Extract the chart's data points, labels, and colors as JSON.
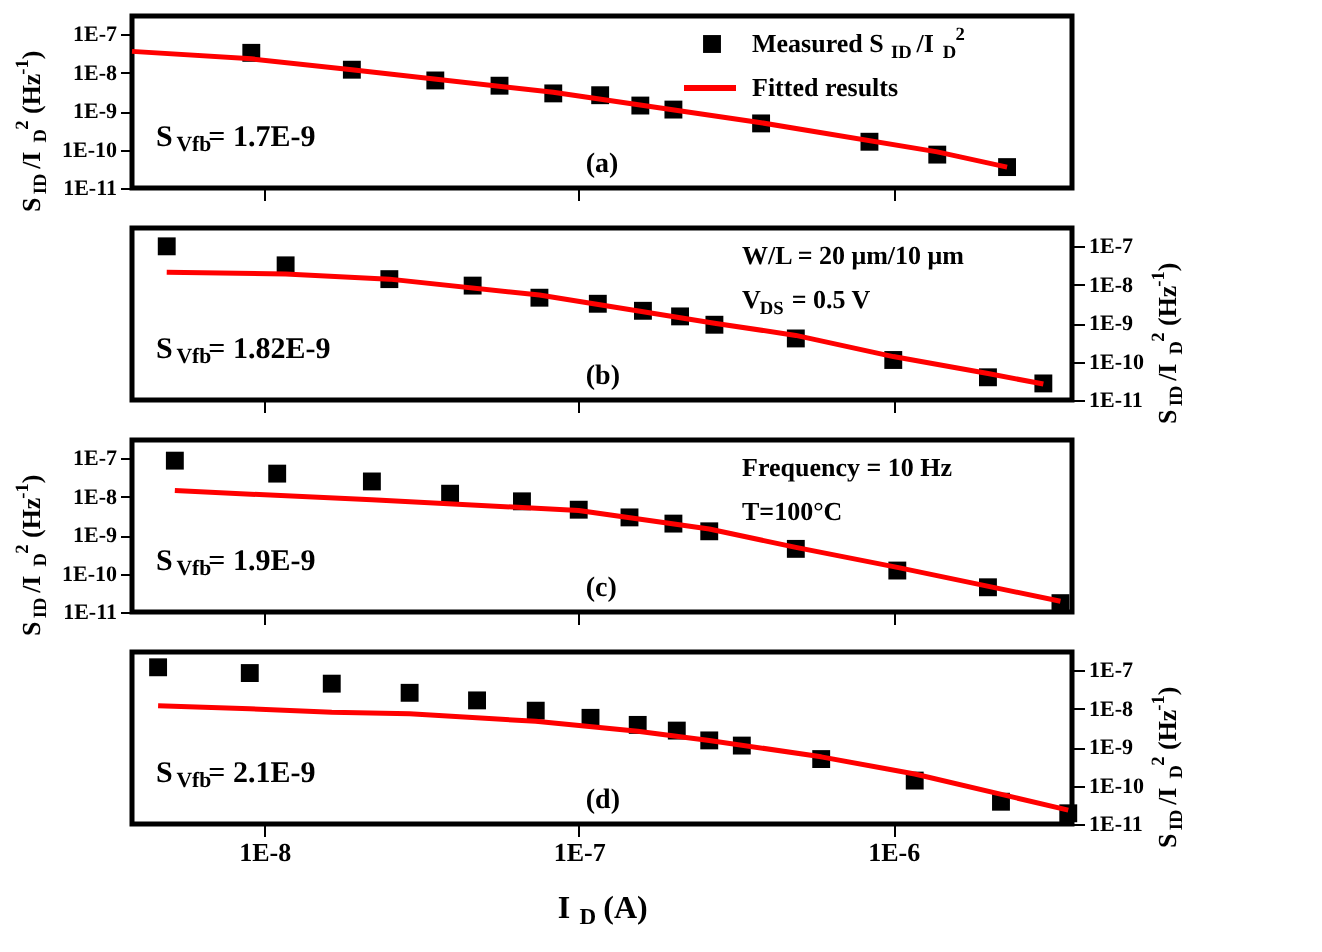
{
  "chart_data": [
    {
      "type": "scatter",
      "log": "xy",
      "xlim": [
        3.8e-09,
        3.7e-06
      ],
      "xticks": [
        {
          "value": 1e-08,
          "label": null
        },
        {
          "value": 1e-07,
          "label": null
        },
        {
          "value": 1e-06,
          "label": null
        }
      ],
      "ylim": [
        1e-11,
        3e-07
      ],
      "yticks": [
        {
          "value": 1e-11,
          "label": "1E-11"
        },
        {
          "value": 1e-10,
          "label": "1E-10"
        },
        {
          "value": 1e-09,
          "label": "1E-9"
        },
        {
          "value": 1e-08,
          "label": "1E-8"
        },
        {
          "value": 1e-07,
          "label": "1E-7"
        }
      ],
      "ylabel": "S$_{ID}$/I$_{D}$$^{2}$ (Hz$^{-1}$)",
      "tick_labels": "y",
      "legend": "top right",
      "grid": false,
      "annotations": [
        "S$_{Vfb}$= 1.7E-9",
        "(a)"
      ],
      "series": [
        {
          "name": "Measured S$_{ID}$/I$_{D}$$^{2}$",
          "type": "scatter",
          "marker": "square",
          "color": "#000000",
          "x": [
            9.1e-09,
            1.9e-08,
            3.5e-08,
            5.6e-08,
            8.3e-08,
            1.17e-07,
            1.57e-07,
            2e-07,
            3.8e-07,
            8.4e-07,
            1.38e-06,
            2.3e-06
          ],
          "values": [
            3.3e-08,
            1.2e-08,
            6.3e-09,
            4.6e-09,
            2.9e-09,
            2.6e-09,
            1.4e-09,
            1.1e-09,
            4.8e-10,
            1.6e-10,
            7.4e-11,
            3.5e-11
          ]
        },
        {
          "name": "Fitted results",
          "type": "line",
          "color": "#ff0000",
          "x": [
            3.8e-09,
            9.1e-09,
            1.9e-08,
            8.3e-08,
            3.8e-07,
            1.38e-06,
            2.3e-06
          ],
          "values": [
            3.6e-08,
            2.3e-08,
            1.2e-08,
            3.1e-09,
            5e-10,
            8.7e-11,
            3.5e-11
          ]
        }
      ]
    },
    {
      "type": "scatter",
      "log": "xy",
      "xlim": [
        3.8e-09,
        3.7e-06
      ],
      "xticks": [
        {
          "value": 1e-08,
          "label": null
        },
        {
          "value": 1e-07,
          "label": null
        },
        {
          "value": 1e-06,
          "label": null
        }
      ],
      "ylim": [
        1e-11,
        3e-07
      ],
      "yticks": [
        {
          "value": 1e-11,
          "label": "1E-11"
        },
        {
          "value": 1e-10,
          "label": "1E-10"
        },
        {
          "value": 1e-09,
          "label": "1E-9"
        },
        {
          "value": 1e-08,
          "label": "1E-8"
        },
        {
          "value": 1e-07,
          "label": "1E-7"
        }
      ],
      "ylabel": "S$_{ID}$/I$_{D}$$^{2}$ (Hz$^{-1}$)",
      "tick_labels": "y",
      "grid": false,
      "annotations": [
        "S$_{Vfb}$= 1.82E-9",
        "(b)",
        "W/L = 20 μm/10 μm",
        "V$_{DS}$ = 0.5 V"
      ],
      "series": [
        {
          "type": "scatter",
          "marker": "square",
          "color": "#000000",
          "x": [
            4.9e-09,
            1.17e-08,
            2.5e-08,
            4.6e-08,
            7.5e-08,
            1.15e-07,
            1.6e-07,
            2.1e-07,
            2.7e-07,
            4.9e-07,
            1e-06,
            2e-06,
            3e-06
          ],
          "values": [
            1e-07,
            3.2e-08,
            1.4e-08,
            9.5e-09,
            4.6e-09,
            3.2e-09,
            2.1e-09,
            1.5e-09,
            9.1e-10,
            4e-10,
            1.1e-10,
            3.9e-11,
            2.7e-11
          ]
        },
        {
          "type": "line",
          "color": "#ff0000",
          "x": [
            4.9e-09,
            1.17e-08,
            2.5e-08,
            7.5e-08,
            2.7e-07,
            4.9e-07,
            1e-06,
            2e-06,
            3e-06
          ],
          "values": [
            2.1e-08,
            1.9e-08,
            1.4e-08,
            5.4e-09,
            1e-09,
            4.8e-10,
            1.35e-10,
            4.9e-11,
            2.6e-11
          ]
        }
      ]
    },
    {
      "type": "scatter",
      "log": "xy",
      "xlim": [
        3.8e-09,
        3.7e-06
      ],
      "xticks": [
        {
          "value": 1e-08,
          "label": null
        },
        {
          "value": 1e-07,
          "label": null
        },
        {
          "value": 1e-06,
          "label": null
        }
      ],
      "ylim": [
        1e-11,
        3e-07
      ],
      "yticks": [
        {
          "value": 1e-11,
          "label": "1E-11"
        },
        {
          "value": 1e-10,
          "label": "1E-10"
        },
        {
          "value": 1e-09,
          "label": "1E-9"
        },
        {
          "value": 1e-08,
          "label": "1E-8"
        },
        {
          "value": 1e-07,
          "label": "1E-7"
        }
      ],
      "ylabel": "S$_{ID}$/I$_{D}$$^{2}$ (Hz$^{-1}$)",
      "tick_labels": "y",
      "grid": false,
      "annotations": [
        "S$_{Vfb}$= 1.9E-9",
        "(c)",
        "Frequency = 10 Hz",
        "T=100°C"
      ],
      "series": [
        {
          "type": "scatter",
          "marker": "square",
          "color": "#000000",
          "x": [
            5.2e-09,
            1.1e-08,
            2.2e-08,
            3.9e-08,
            6.6e-08,
            1e-07,
            1.45e-07,
            2e-07,
            2.6e-07,
            4.9e-07,
            1.03e-06,
            2e-06,
            3.4e-06
          ],
          "values": [
            8.7e-08,
            4e-08,
            2.5e-08,
            1.2e-08,
            7.6e-09,
            4.6e-09,
            2.9e-09,
            2e-09,
            1.26e-09,
            4.4e-10,
            1.2e-10,
            4.4e-11,
            1.7e-11
          ]
        },
        {
          "type": "line",
          "color": "#ff0000",
          "x": [
            5.2e-09,
            2.2e-08,
            1e-07,
            2.6e-07,
            4.9e-07,
            1.03e-06,
            3.4e-06
          ],
          "values": [
            1.45e-08,
            8.3e-09,
            4.4e-09,
            1.45e-09,
            4.8e-10,
            1.45e-10,
            1.9e-11
          ]
        }
      ]
    },
    {
      "type": "scatter",
      "log": "xy",
      "xlim": [
        3.8e-09,
        3.7e-06
      ],
      "xticks": [
        {
          "value": 1e-08,
          "label": "1E-8"
        },
        {
          "value": 1e-07,
          "label": "1E-7"
        },
        {
          "value": 1e-06,
          "label": "1E-6"
        }
      ],
      "ylim": [
        1e-11,
        3e-07
      ],
      "yticks": [
        {
          "value": 1e-11,
          "label": "1E-11"
        },
        {
          "value": 1e-10,
          "label": "1E-10"
        },
        {
          "value": 1e-09,
          "label": "1E-9"
        },
        {
          "value": 1e-08,
          "label": "1E-8"
        },
        {
          "value": 1e-07,
          "label": "1E-7"
        }
      ],
      "xlabel": "I$_{D}$ (A)",
      "ylabel": "S$_{ID}$/I$_{D}$$^{2}$ (Hz$^{-1}$)",
      "grid": false,
      "annotations": [
        "S$_{Vfb}$= 2.1E-9",
        "(d)"
      ],
      "series": [
        {
          "type": "scatter",
          "marker": "square",
          "color": "#000000",
          "x": [
            4.6e-09,
            9e-09,
            1.64e-08,
            2.9e-08,
            4.75e-08,
            7.3e-08,
            1.09e-07,
            1.54e-07,
            2.05e-07,
            2.6e-07,
            3.3e-07,
            5.9e-07,
            1.17e-06,
            2.2e-06,
            3.6e-06
          ],
          "values": [
            1.2e-07,
            8.5e-08,
            4.5e-08,
            2.6e-08,
            1.65e-08,
            8.9e-09,
            5.8e-09,
            3.8e-09,
            2.7e-09,
            1.5e-09,
            1.1e-09,
            4.9e-10,
            1.35e-10,
            3.8e-11,
            1.9e-11
          ]
        },
        {
          "type": "line",
          "color": "#ff0000",
          "x": [
            4.6e-09,
            9e-09,
            1.64e-08,
            2.9e-08,
            7.3e-08,
            1.54e-07,
            2.6e-07,
            5.9e-07,
            1.17e-06,
            3.6e-06
          ],
          "values": [
            1.2e-08,
            1e-08,
            8.1e-09,
            7.4e-09,
            4.7e-09,
            2.6e-09,
            1.5e-09,
            5.6e-10,
            2e-10,
            2.3e-11
          ]
        }
      ]
    }
  ]
}
